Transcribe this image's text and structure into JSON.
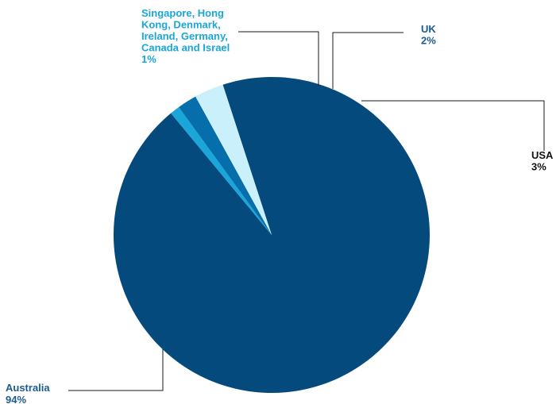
{
  "chart_data": {
    "type": "pie",
    "title": "",
    "slices": [
      {
        "label": "Australia",
        "value": 94,
        "display": "94%",
        "color": "#044a7c"
      },
      {
        "label": "Singapore, Hong Kong, Denmark, Ireland, Germany, Canada and Israel",
        "value": 1,
        "display": "1%",
        "color": "#1aa6d9"
      },
      {
        "label": "UK",
        "value": 2,
        "display": "2%",
        "color": "#066eab"
      },
      {
        "label": "USA",
        "value": 3,
        "display": "3%",
        "color": "#c9f0fb"
      }
    ],
    "labels": [
      {
        "lines": [
          "Australia",
          "94%"
        ],
        "color": "#1b5c8f"
      },
      {
        "lines": [
          "Singapore, Hong",
          "Kong, Denmark,",
          "Ireland, Germany,",
          "Canada and Israel",
          "1%"
        ],
        "color": "#1aa6d9"
      },
      {
        "lines": [
          "UK",
          "2%"
        ],
        "color": "#1b5c8f"
      },
      {
        "lines": [
          "USA",
          "3%"
        ],
        "color": "#111111"
      }
    ]
  }
}
